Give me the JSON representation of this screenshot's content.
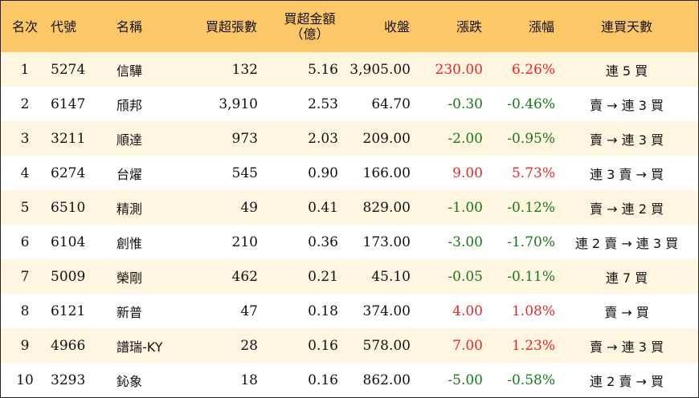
{
  "headers": {
    "rank": "名次",
    "code": "代號",
    "name": "名稱",
    "buy_lots": "買超張數",
    "buy_amount_line1": "買超金額",
    "buy_amount_line2": "（億）",
    "close": "收盤",
    "change": "漲跌",
    "change_pct": "漲幅",
    "streak": "連買天數"
  },
  "colors": {
    "header_bg": "#fcc766",
    "stripe_bg": "#fff6e1",
    "up": "#e8262b",
    "down": "#157a15"
  },
  "rows": [
    {
      "rank": "1",
      "code": "5274",
      "name": "信驊",
      "buy_lots": "132",
      "buy_amount": "5.16",
      "close": "3,905.00",
      "change": "230.00",
      "change_pct": "6.26%",
      "dir": "up",
      "streak": "連 5 買"
    },
    {
      "rank": "2",
      "code": "6147",
      "name": "頎邦",
      "buy_lots": "3,910",
      "buy_amount": "2.53",
      "close": "64.70",
      "change": "-0.30",
      "change_pct": "-0.46%",
      "dir": "down",
      "streak": "賣 → 連 3 買"
    },
    {
      "rank": "3",
      "code": "3211",
      "name": "順達",
      "buy_lots": "973",
      "buy_amount": "2.03",
      "close": "209.00",
      "change": "-2.00",
      "change_pct": "-0.95%",
      "dir": "down",
      "streak": "賣 → 連 3 買"
    },
    {
      "rank": "4",
      "code": "6274",
      "name": "台燿",
      "buy_lots": "545",
      "buy_amount": "0.90",
      "close": "166.00",
      "change": "9.00",
      "change_pct": "5.73%",
      "dir": "up",
      "streak": "連 3 賣 → 買"
    },
    {
      "rank": "5",
      "code": "6510",
      "name": "精測",
      "buy_lots": "49",
      "buy_amount": "0.41",
      "close": "829.00",
      "change": "-1.00",
      "change_pct": "-0.12%",
      "dir": "down",
      "streak": "賣 → 連 2 買"
    },
    {
      "rank": "6",
      "code": "6104",
      "name": "創惟",
      "buy_lots": "210",
      "buy_amount": "0.36",
      "close": "173.00",
      "change": "-3.00",
      "change_pct": "-1.70%",
      "dir": "down",
      "streak": "連 2 賣 → 連 3 買"
    },
    {
      "rank": "7",
      "code": "5009",
      "name": "榮剛",
      "buy_lots": "462",
      "buy_amount": "0.21",
      "close": "45.10",
      "change": "-0.05",
      "change_pct": "-0.11%",
      "dir": "down",
      "streak": "連 7 買"
    },
    {
      "rank": "8",
      "code": "6121",
      "name": "新普",
      "buy_lots": "47",
      "buy_amount": "0.18",
      "close": "374.00",
      "change": "4.00",
      "change_pct": "1.08%",
      "dir": "up",
      "streak": "賣 → 買"
    },
    {
      "rank": "9",
      "code": "4966",
      "name": "譜瑞-KY",
      "buy_lots": "28",
      "buy_amount": "0.16",
      "close": "578.00",
      "change": "7.00",
      "change_pct": "1.23%",
      "dir": "up",
      "streak": "賣 → 連 3 買"
    },
    {
      "rank": "10",
      "code": "3293",
      "name": "鈊象",
      "buy_lots": "18",
      "buy_amount": "0.16",
      "close": "862.00",
      "change": "-5.00",
      "change_pct": "-0.58%",
      "dir": "down",
      "streak": "連 2 賣 → 買"
    }
  ]
}
